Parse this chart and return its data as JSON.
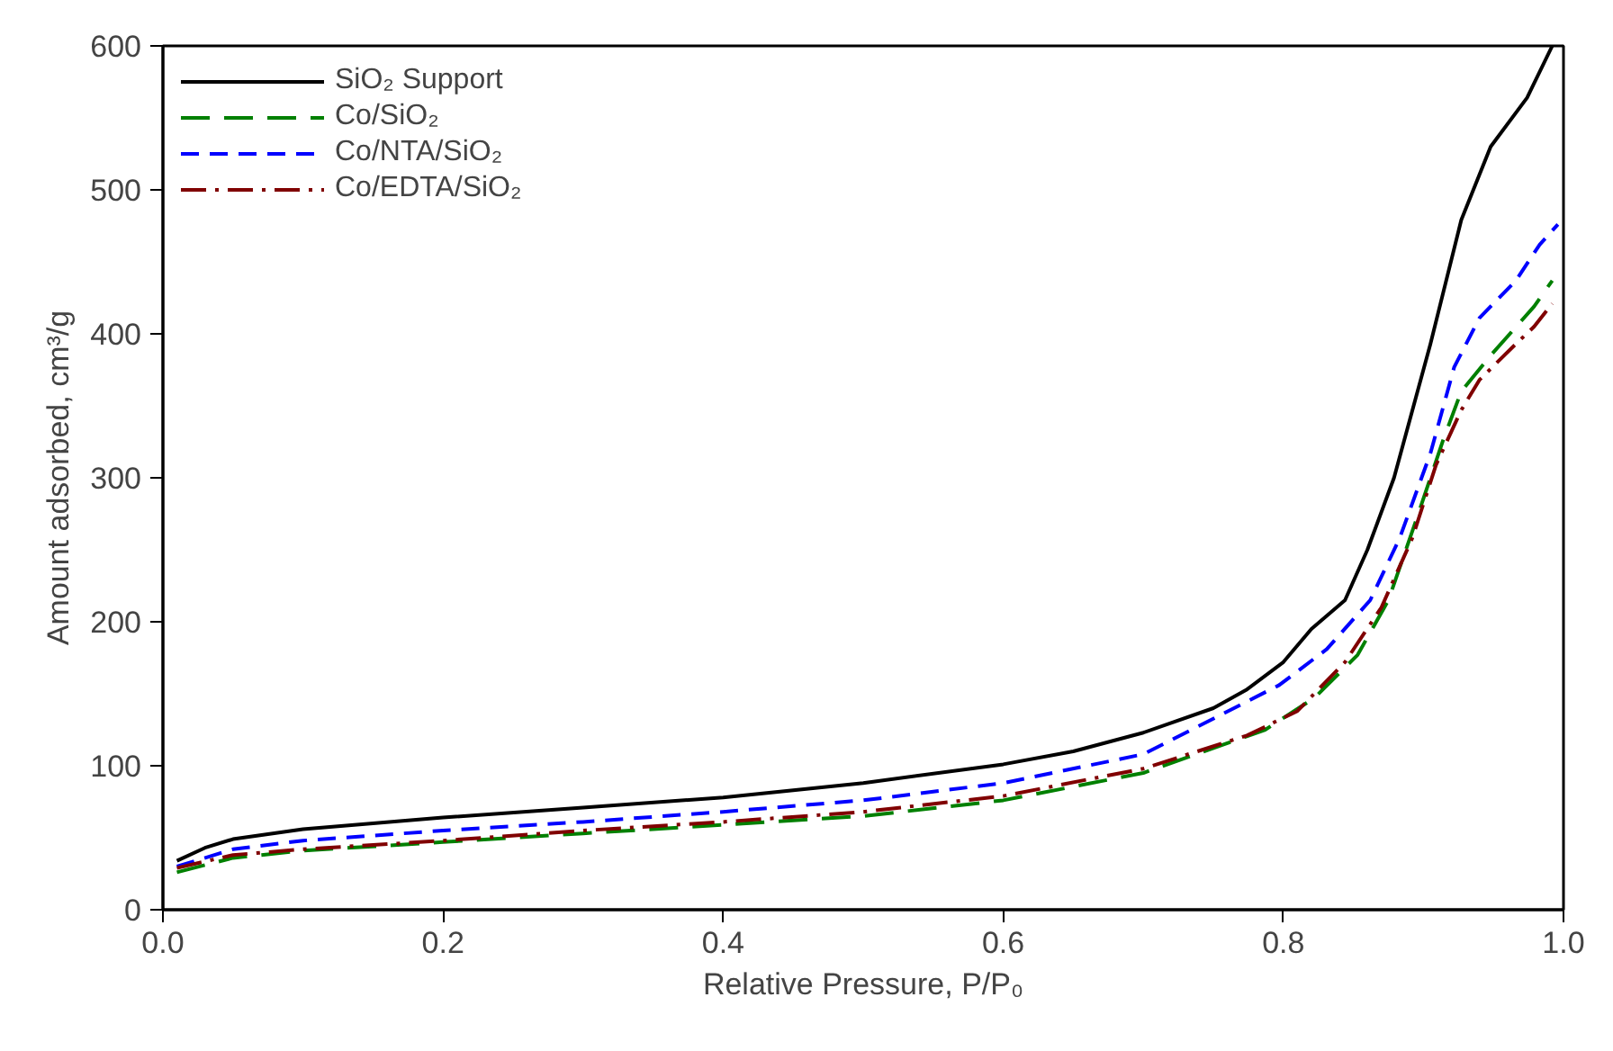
{
  "chart_data": {
    "type": "line",
    "xlabel": "Relative Pressure, P/P₀",
    "ylabel": "Amount adsorbed, cm³/g",
    "xlim": [
      0,
      1
    ],
    "ylim": [
      0,
      600
    ],
    "xticks": [
      {
        "value": 0,
        "label": "0.0"
      },
      0.2,
      0.4,
      0.6,
      0.8,
      {
        "value": 1,
        "label": "1.0"
      }
    ],
    "yticks": [
      0,
      100,
      200,
      300,
      400,
      500,
      600
    ],
    "grid": false,
    "legend": "top left",
    "marker": "none",
    "series": [
      {
        "name": "SiO₂ Support",
        "color": "#000000",
        "line_style": "solid",
        "x": [
          0.01,
          0.03,
          0.05,
          0.1,
          0.2,
          0.3,
          0.4,
          0.5,
          0.6,
          0.65,
          0.7,
          0.75,
          0.774,
          0.8,
          0.82,
          0.844,
          0.86,
          0.879,
          0.905,
          0.927,
          0.948,
          0.974,
          0.992
        ],
        "values": [
          34,
          43,
          49,
          56,
          64,
          71,
          78,
          88,
          101,
          110,
          123,
          140,
          153,
          172,
          195,
          215,
          250,
          300,
          393,
          479,
          530,
          564,
          600
        ]
      },
      {
        "name": "Co/SiO₂",
        "color": "#008000",
        "line_style": "dashed",
        "x": [
          0.01,
          0.05,
          0.1,
          0.2,
          0.3,
          0.4,
          0.5,
          0.6,
          0.7,
          0.787,
          0.822,
          0.853,
          0.875,
          0.896,
          0.914,
          0.927,
          0.948,
          0.979,
          0.992
        ],
        "values": [
          26,
          36,
          41,
          47,
          53,
          59,
          65,
          76,
          95,
          125,
          147,
          177,
          215,
          274,
          326,
          360,
          385,
          419,
          437
        ]
      },
      {
        "name": "Co/NTA/SiO₂",
        "color": "#0000ff",
        "line_style": "dashed",
        "x": [
          0.01,
          0.05,
          0.1,
          0.2,
          0.3,
          0.4,
          0.5,
          0.6,
          0.7,
          0.797,
          0.831,
          0.862,
          0.883,
          0.905,
          0.922,
          0.94,
          0.966,
          0.983,
          0.996
        ],
        "values": [
          30,
          42,
          48,
          55,
          61,
          68,
          76,
          88,
          108,
          156,
          181,
          215,
          258,
          317,
          377,
          411,
          437,
          462,
          476
        ]
      },
      {
        "name": "Co/EDTA/SiO₂",
        "color": "#800000",
        "line_style": "dashdot",
        "x": [
          0.01,
          0.05,
          0.1,
          0.2,
          0.3,
          0.4,
          0.5,
          0.6,
          0.7,
          0.774,
          0.81,
          0.844,
          0.87,
          0.892,
          0.909,
          0.927,
          0.94,
          0.966,
          0.979,
          0.992
        ],
        "values": [
          29,
          38,
          42,
          48,
          55,
          61,
          68,
          79,
          98,
          121,
          138,
          172,
          210,
          258,
          309,
          347,
          368,
          393,
          405,
          421
        ]
      }
    ]
  }
}
